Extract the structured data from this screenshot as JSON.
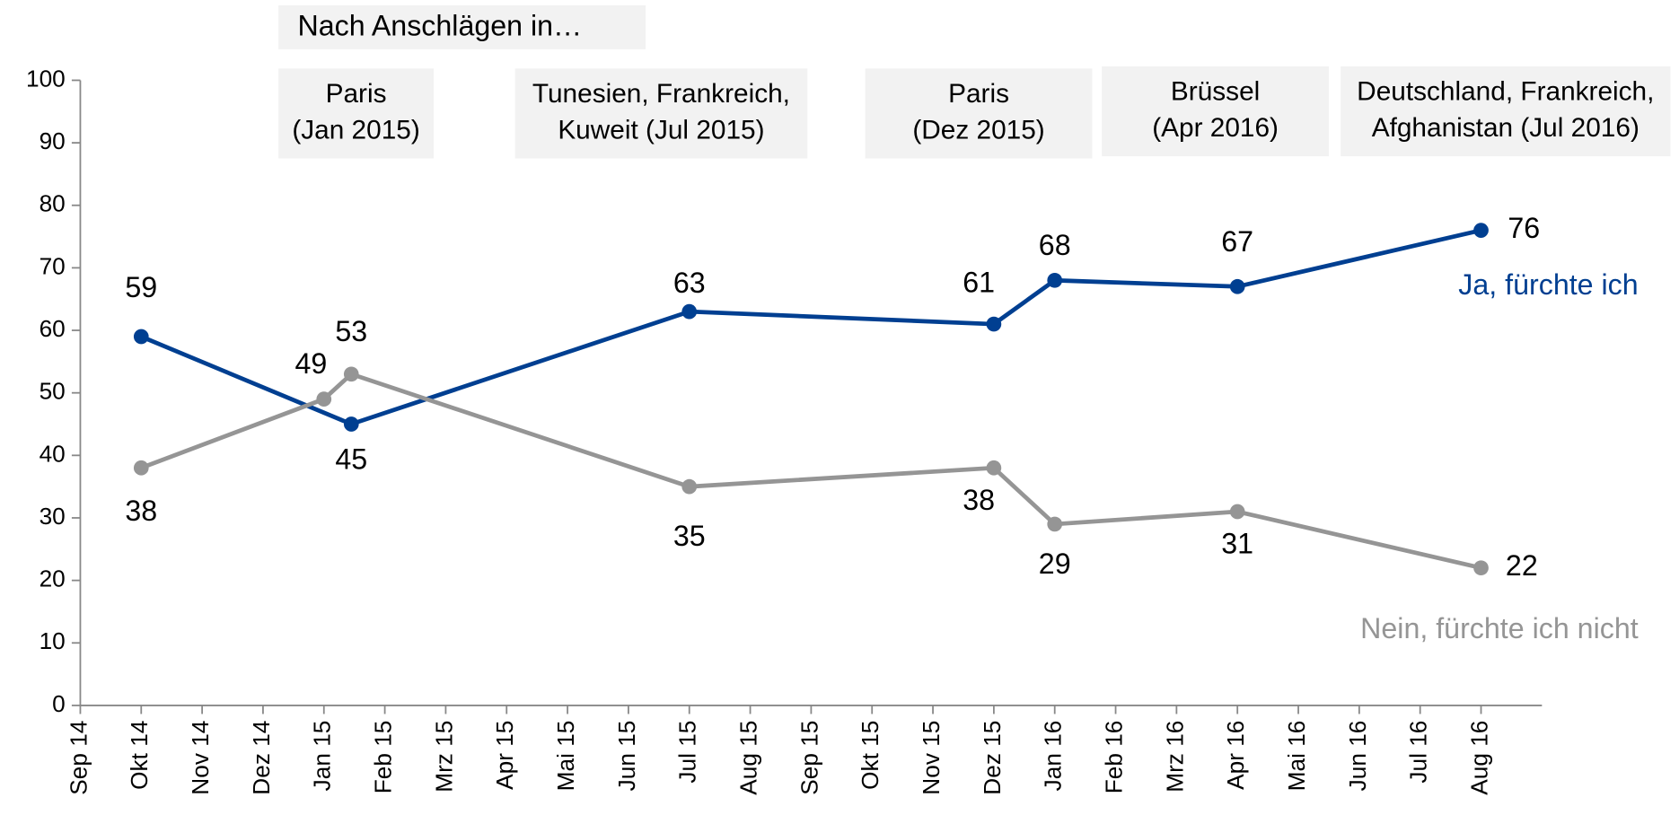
{
  "chart_data": {
    "type": "line",
    "heading": "Nach Anschlägen in…",
    "annotations": [
      {
        "lines": [
          "Paris",
          "(Jan 2015)"
        ]
      },
      {
        "lines": [
          "Tunesien, Frankreich,",
          "Kuweit (Jul 2015)"
        ]
      },
      {
        "lines": [
          "Paris",
          "(Dez 2015)"
        ]
      },
      {
        "lines": [
          "Brüssel",
          "(Apr 2016)"
        ]
      },
      {
        "lines": [
          "Deutschland, Frankreich,",
          "Afghanistan (Jul 2016)"
        ]
      }
    ],
    "series": [
      {
        "name": "Ja, fürchte ich",
        "color": "#003f91",
        "x": [
          1,
          4.45,
          10,
          15,
          16,
          19,
          23
        ],
        "values": [
          59,
          45,
          63,
          61,
          68,
          67,
          76
        ]
      },
      {
        "name": "Nein, fürchte ich nicht",
        "color": "#959595",
        "x": [
          1,
          4,
          4.45,
          10,
          15,
          16,
          19,
          23
        ],
        "values": [
          38,
          49,
          53,
          35,
          38,
          29,
          31,
          22
        ]
      }
    ],
    "xlim": [
      0,
      24
    ],
    "xticks": [
      {
        "value": 0,
        "label": "Sep 14"
      },
      {
        "value": 1,
        "label": "Okt 14"
      },
      {
        "value": 2,
        "label": "Nov 14"
      },
      {
        "value": 3,
        "label": "Dez 14"
      },
      {
        "value": 4,
        "label": "Jan 15"
      },
      {
        "value": 5,
        "label": "Feb 15"
      },
      {
        "value": 6,
        "label": "Mrz 15"
      },
      {
        "value": 7,
        "label": "Apr 15"
      },
      {
        "value": 8,
        "label": "Mai 15"
      },
      {
        "value": 9,
        "label": "Jun 15"
      },
      {
        "value": 10,
        "label": "Jul 15"
      },
      {
        "value": 11,
        "label": "Aug 15"
      },
      {
        "value": 12,
        "label": "Sep 15"
      },
      {
        "value": 13,
        "label": "Okt 15"
      },
      {
        "value": 14,
        "label": "Nov 15"
      },
      {
        "value": 15,
        "label": "Dez 15"
      },
      {
        "value": 16,
        "label": "Jan 16"
      },
      {
        "value": 17,
        "label": "Feb 16"
      },
      {
        "value": 18,
        "label": "Mrz 16"
      },
      {
        "value": 19,
        "label": "Apr 16"
      },
      {
        "value": 20,
        "label": "Mai 16"
      },
      {
        "value": 21,
        "label": "Jun 16"
      },
      {
        "value": 22,
        "label": "Jul 16"
      },
      {
        "value": 23,
        "label": "Aug 16"
      }
    ],
    "ylim": [
      0,
      100
    ],
    "yticks": [
      0,
      10,
      20,
      30,
      40,
      50,
      60,
      70,
      80,
      90,
      100
    ]
  }
}
